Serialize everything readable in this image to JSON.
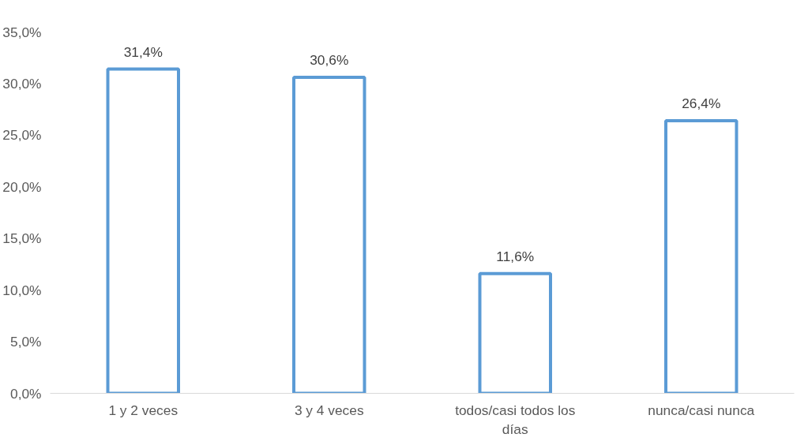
{
  "chart_data": {
    "type": "bar",
    "categories": [
      "1 y 2 veces",
      "3 y 4 veces",
      "todos/casi todos los días",
      "nunca/casi nunca"
    ],
    "values": [
      31.4,
      30.6,
      11.6,
      26.4
    ],
    "value_labels": [
      "31,4%",
      "30,6%",
      "11,6%",
      "26,4%"
    ],
    "color": "#5b9bd5",
    "ylim": [
      0,
      35
    ],
    "yticks": [
      {
        "value": 0,
        "label": "0,0%"
      },
      {
        "value": 5,
        "label": "5,0%"
      },
      {
        "value": 10,
        "label": "10,0%"
      },
      {
        "value": 15,
        "label": "15,0%"
      },
      {
        "value": 20,
        "label": "20,0%"
      },
      {
        "value": 25,
        "label": "25,0%"
      },
      {
        "value": 30,
        "label": "30,0%"
      },
      {
        "value": 35,
        "label": "35,0%"
      }
    ],
    "grid": false
  }
}
